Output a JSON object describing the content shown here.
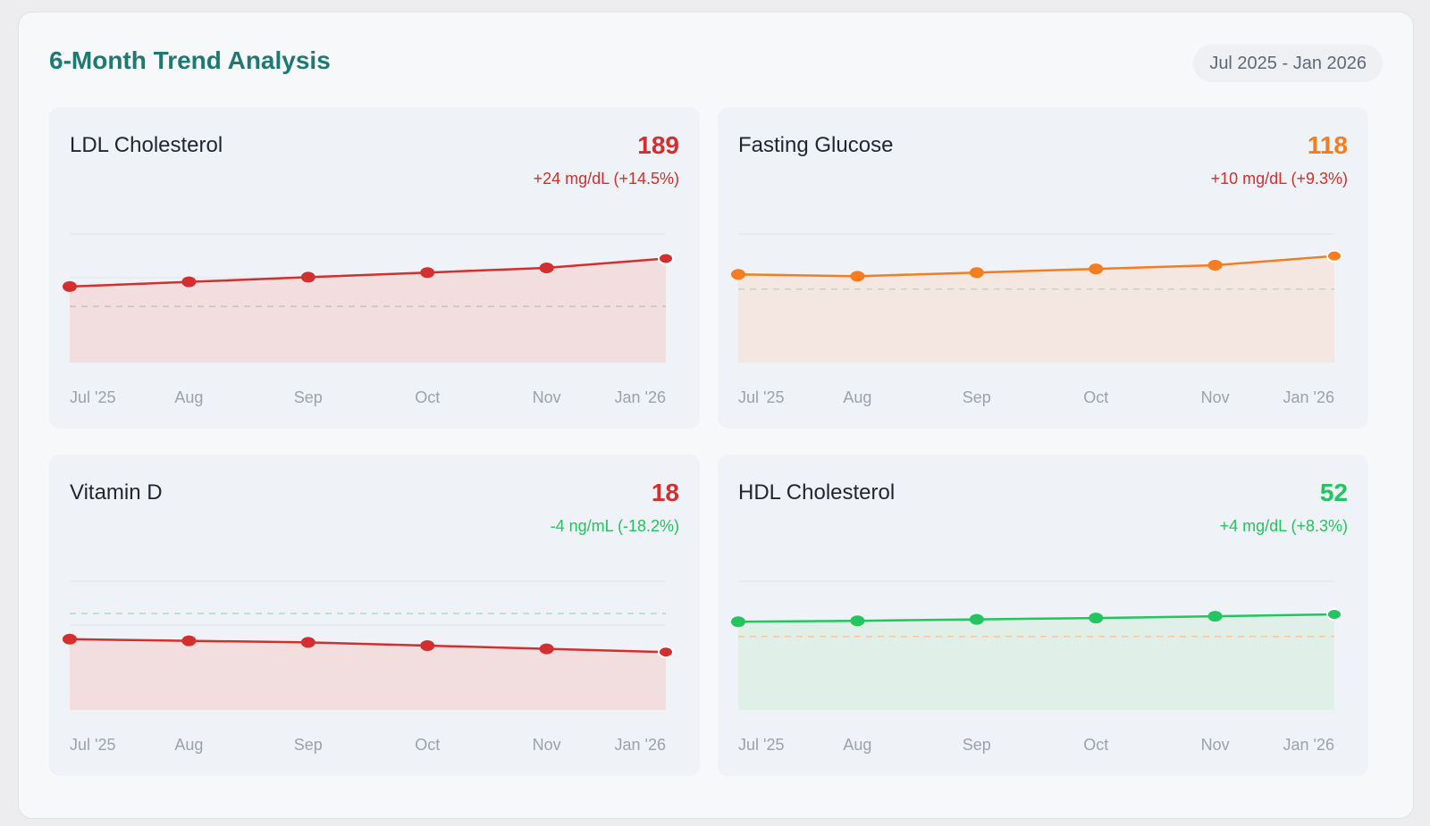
{
  "header": {
    "title": "6-Month Trend Analysis",
    "date_range": "Jul 2025 - Jan 2026"
  },
  "cards": [
    {
      "name": "LDL Cholesterol",
      "value": "189",
      "change": "+24 mg/dL (+14.5%)",
      "value_color": "#d32f2f",
      "change_color": "#d32f2f",
      "line_color": "#d32f2f",
      "fill_color": "#f2dede",
      "ref_color": "#b9c9b0"
    },
    {
      "name": "Fasting Glucose",
      "value": "118",
      "change": "+10 mg/dL (+9.3%)",
      "value_color": "#f57c1f",
      "change_color": "#d32f2f",
      "line_color": "#f57c1f",
      "fill_color": "#f4e6e1",
      "ref_color": "#b7dcc2"
    },
    {
      "name": "Vitamin D",
      "value": "18",
      "change": "-4 ng/mL (-18.2%)",
      "value_color": "#d32f2f",
      "change_color": "#22c55e",
      "line_color": "#d32f2f",
      "fill_color": "#f2dede",
      "ref_color": "#a8ddc0"
    },
    {
      "name": "HDL Cholesterol",
      "value": "52",
      "change": "+4 mg/dL (+8.3%)",
      "value_color": "#22c55e",
      "change_color": "#22c55e",
      "line_color": "#22c55e",
      "fill_color": "#e0f0e8",
      "ref_color": "#f2c9a0"
    }
  ],
  "chart_data": [
    {
      "type": "area",
      "title": "LDL Cholesterol",
      "unit": "mg/dL",
      "categories": [
        "Jul '25",
        "Aug",
        "Sep",
        "Oct",
        "Nov",
        "Jan '26"
      ],
      "values": [
        165,
        169,
        173,
        177,
        181,
        189
      ],
      "reference_line": 148,
      "ylim": [
        100,
        210
      ],
      "grid": true
    },
    {
      "type": "area",
      "title": "Fasting Glucose",
      "unit": "mg/dL",
      "categories": [
        "Jul '25",
        "Aug",
        "Sep",
        "Oct",
        "Nov",
        "Jan '26"
      ],
      "values": [
        108,
        107,
        109,
        111,
        113,
        118
      ],
      "reference_line": 100,
      "ylim": [
        60,
        130
      ],
      "grid": true
    },
    {
      "type": "area",
      "title": "Vitamin D",
      "unit": "ng/mL",
      "categories": [
        "Jul '25",
        "Aug",
        "Sep",
        "Oct",
        "Nov",
        "Jan '26"
      ],
      "values": [
        22,
        21.5,
        21,
        20,
        19,
        18
      ],
      "reference_line": 30,
      "ylim": [
        0,
        40
      ],
      "grid": true
    },
    {
      "type": "area",
      "title": "HDL Cholesterol",
      "unit": "mg/dL",
      "categories": [
        "Jul '25",
        "Aug",
        "Sep",
        "Oct",
        "Nov",
        "Jan '26"
      ],
      "values": [
        48,
        48.5,
        49.3,
        50,
        51,
        52
      ],
      "reference_line": 40,
      "ylim": [
        0,
        70
      ],
      "grid": true
    }
  ]
}
